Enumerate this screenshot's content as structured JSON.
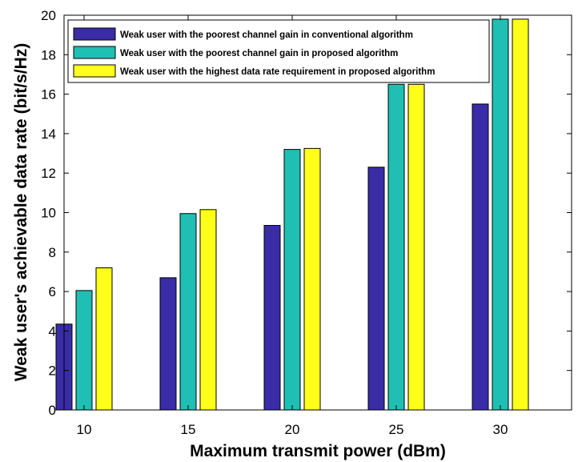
{
  "chart_data": {
    "type": "bar",
    "title": "",
    "xlabel": "Maximum transmit power (dBm)",
    "ylabel": "Weak user's achievable data rate (bit/s/Hz)",
    "categories": [
      "10",
      "15",
      "20",
      "25",
      "30"
    ],
    "ylim": [
      0,
      20
    ],
    "yticks": [
      "0",
      "2",
      "4",
      "6",
      "8",
      "10",
      "12",
      "14",
      "16",
      "18",
      "20"
    ],
    "grid": false,
    "legend_position": "top-left",
    "series": [
      {
        "name": "Weak user with the poorest channel gain in conventional algorithm",
        "color": "#3a2ca6",
        "values": [
          4.35,
          6.7,
          9.35,
          12.3,
          15.5
        ]
      },
      {
        "name": "Weak user with the poorest channel gain in proposed algorithm",
        "color": "#1fbfb3",
        "values": [
          6.05,
          9.95,
          13.2,
          16.5,
          19.8
        ]
      },
      {
        "name": "Weak user with the highest data rate requirement in proposed algorithm",
        "color": "#ffff1a",
        "values": [
          7.2,
          10.15,
          13.25,
          16.5,
          19.8
        ]
      }
    ]
  }
}
